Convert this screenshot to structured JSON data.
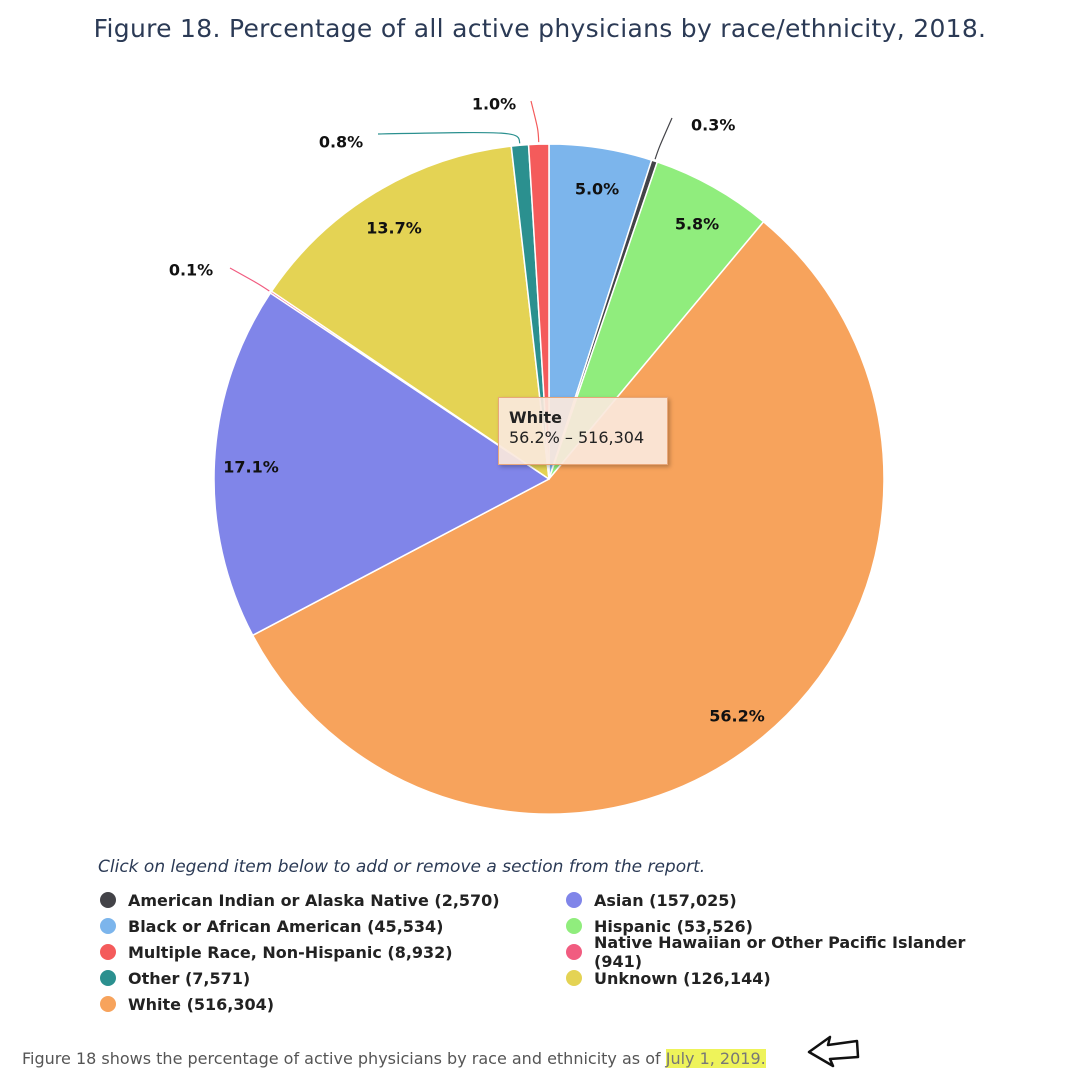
{
  "title": "Figure 18. Percentage of all active physicians by race/ethnicity, 2018.",
  "chart_data": {
    "type": "pie",
    "title": "Figure 18. Percentage of all active physicians by race/ethnicity, 2018.",
    "slices": [
      {
        "name": "Black or African American",
        "value": 45534,
        "label": "5.0%",
        "color": "#7cb5ec"
      },
      {
        "name": "American Indian or Alaska Native",
        "value": 2570,
        "label": "0.3%",
        "color": "#434348"
      },
      {
        "name": "Hispanic",
        "value": 53526,
        "label": "5.8%",
        "color": "#90ed7d"
      },
      {
        "name": "White",
        "value": 516304,
        "label": "56.2%",
        "color": "#f7a35c"
      },
      {
        "name": "Asian",
        "value": 157025,
        "label": "17.1%",
        "color": "#8085e9"
      },
      {
        "name": "Native Hawaiian or Other Pacific Islander",
        "value": 941,
        "label": "0.1%",
        "color": "#f15c80"
      },
      {
        "name": "Unknown",
        "value": 126144,
        "label": "13.7%",
        "color": "#e4d354"
      },
      {
        "name": "Other",
        "value": 7571,
        "label": "0.8%",
        "color": "#2b908f"
      },
      {
        "name": "Multiple Race, Non-Hispanic",
        "value": 8932,
        "label": "1.0%",
        "color": "#f45b5b"
      }
    ],
    "tooltip": {
      "name": "White",
      "text": "56.2% – 516,304"
    }
  },
  "legend": {
    "hint": "Click on legend item below to add or remove a section from the report.",
    "items": [
      {
        "label": "American Indian or Alaska Native (2,570)",
        "color": "#434348"
      },
      {
        "label": "Asian (157,025)",
        "color": "#8085e9"
      },
      {
        "label": "Black or African American (45,534)",
        "color": "#7cb5ec"
      },
      {
        "label": "Hispanic (53,526)",
        "color": "#90ed7d"
      },
      {
        "label": "Multiple Race, Non-Hispanic (8,932)",
        "color": "#f45b5b"
      },
      {
        "label": "Native Hawaiian or Other Pacific Islander (941)",
        "color": "#f15c80"
      },
      {
        "label": "Other (7,571)",
        "color": "#2b908f"
      },
      {
        "label": "Unknown (126,144)",
        "color": "#e4d354"
      },
      {
        "label": "White (516,304)",
        "color": "#f7a35c"
      }
    ]
  },
  "caption": {
    "text": "Figure 18 shows the percentage of active physicians by race and ethnicity as of ",
    "highlight": "July 1, 2019."
  },
  "icons": {
    "annotation_arrow": "arrow-left-outline-icon"
  }
}
